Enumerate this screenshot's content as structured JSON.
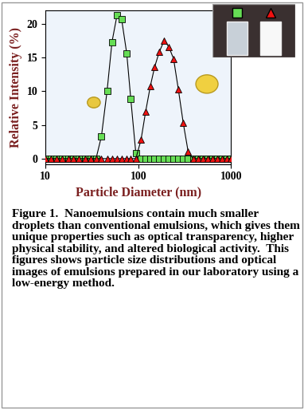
{
  "chart_data": {
    "type": "line",
    "xlabel": "Particle Diameter (nm)",
    "ylabel": "Relative Intensity (%)",
    "log": "x",
    "xlim": [
      10,
      1000
    ],
    "xticks": [
      10,
      100,
      1000
    ],
    "ylim": [
      -0.8,
      22
    ],
    "yticks": [
      0,
      5,
      10,
      15,
      20
    ],
    "grid": false,
    "series": [
      {
        "color": "#66dd55",
        "marker": "square",
        "x": [
          10,
          11.5,
          13.2,
          15.2,
          17.5,
          20,
          23,
          26.5,
          30.5,
          35,
          40,
          46,
          52,
          59,
          66,
          75,
          83,
          94,
          107,
          120,
          135,
          150,
          168,
          190,
          213,
          240,
          270,
          305,
          345,
          390,
          440,
          500,
          560,
          630,
          710,
          800,
          900,
          1000
        ],
        "values": [
          0,
          0,
          0,
          0,
          0,
          0,
          0,
          0,
          0,
          0,
          3.3,
          10,
          17.3,
          21.3,
          20.7,
          15.6,
          8.8,
          0.8,
          0,
          0,
          0,
          0,
          0,
          0,
          0,
          0,
          0,
          0,
          0,
          0,
          0,
          0,
          0,
          0,
          0,
          0,
          0,
          0
        ]
      },
      {
        "color": "#ee1111",
        "marker": "triangle",
        "x": [
          10,
          11.5,
          13.2,
          15.2,
          17.5,
          20,
          23,
          26.5,
          30.5,
          35,
          40,
          46,
          52,
          59,
          66,
          75,
          83,
          94,
          107,
          120,
          135,
          150,
          168,
          190,
          213,
          240,
          270,
          305,
          345,
          390,
          440,
          500,
          560,
          630,
          710,
          800,
          900,
          1000
        ],
        "values": [
          0,
          0,
          0,
          0,
          0,
          0,
          0,
          0,
          0,
          0,
          0,
          0,
          0,
          0,
          0,
          0,
          0,
          0,
          2.8,
          7.0,
          10.8,
          13.6,
          15.8,
          17.5,
          16.6,
          14.8,
          10.3,
          5.3,
          1.0,
          0,
          0,
          0,
          0,
          0,
          0,
          0,
          0,
          0
        ]
      }
    ]
  },
  "figure_caption": "Figure 1.  Nanoemulsions contain much smaller droplets than conventional emulsions, which gives them unique properties such as optical transparency, higher physical stability, and altered biological activity.  This figures shows particle size distributions and optical images of emulsions prepared in our laboratory using a low-energy method."
}
